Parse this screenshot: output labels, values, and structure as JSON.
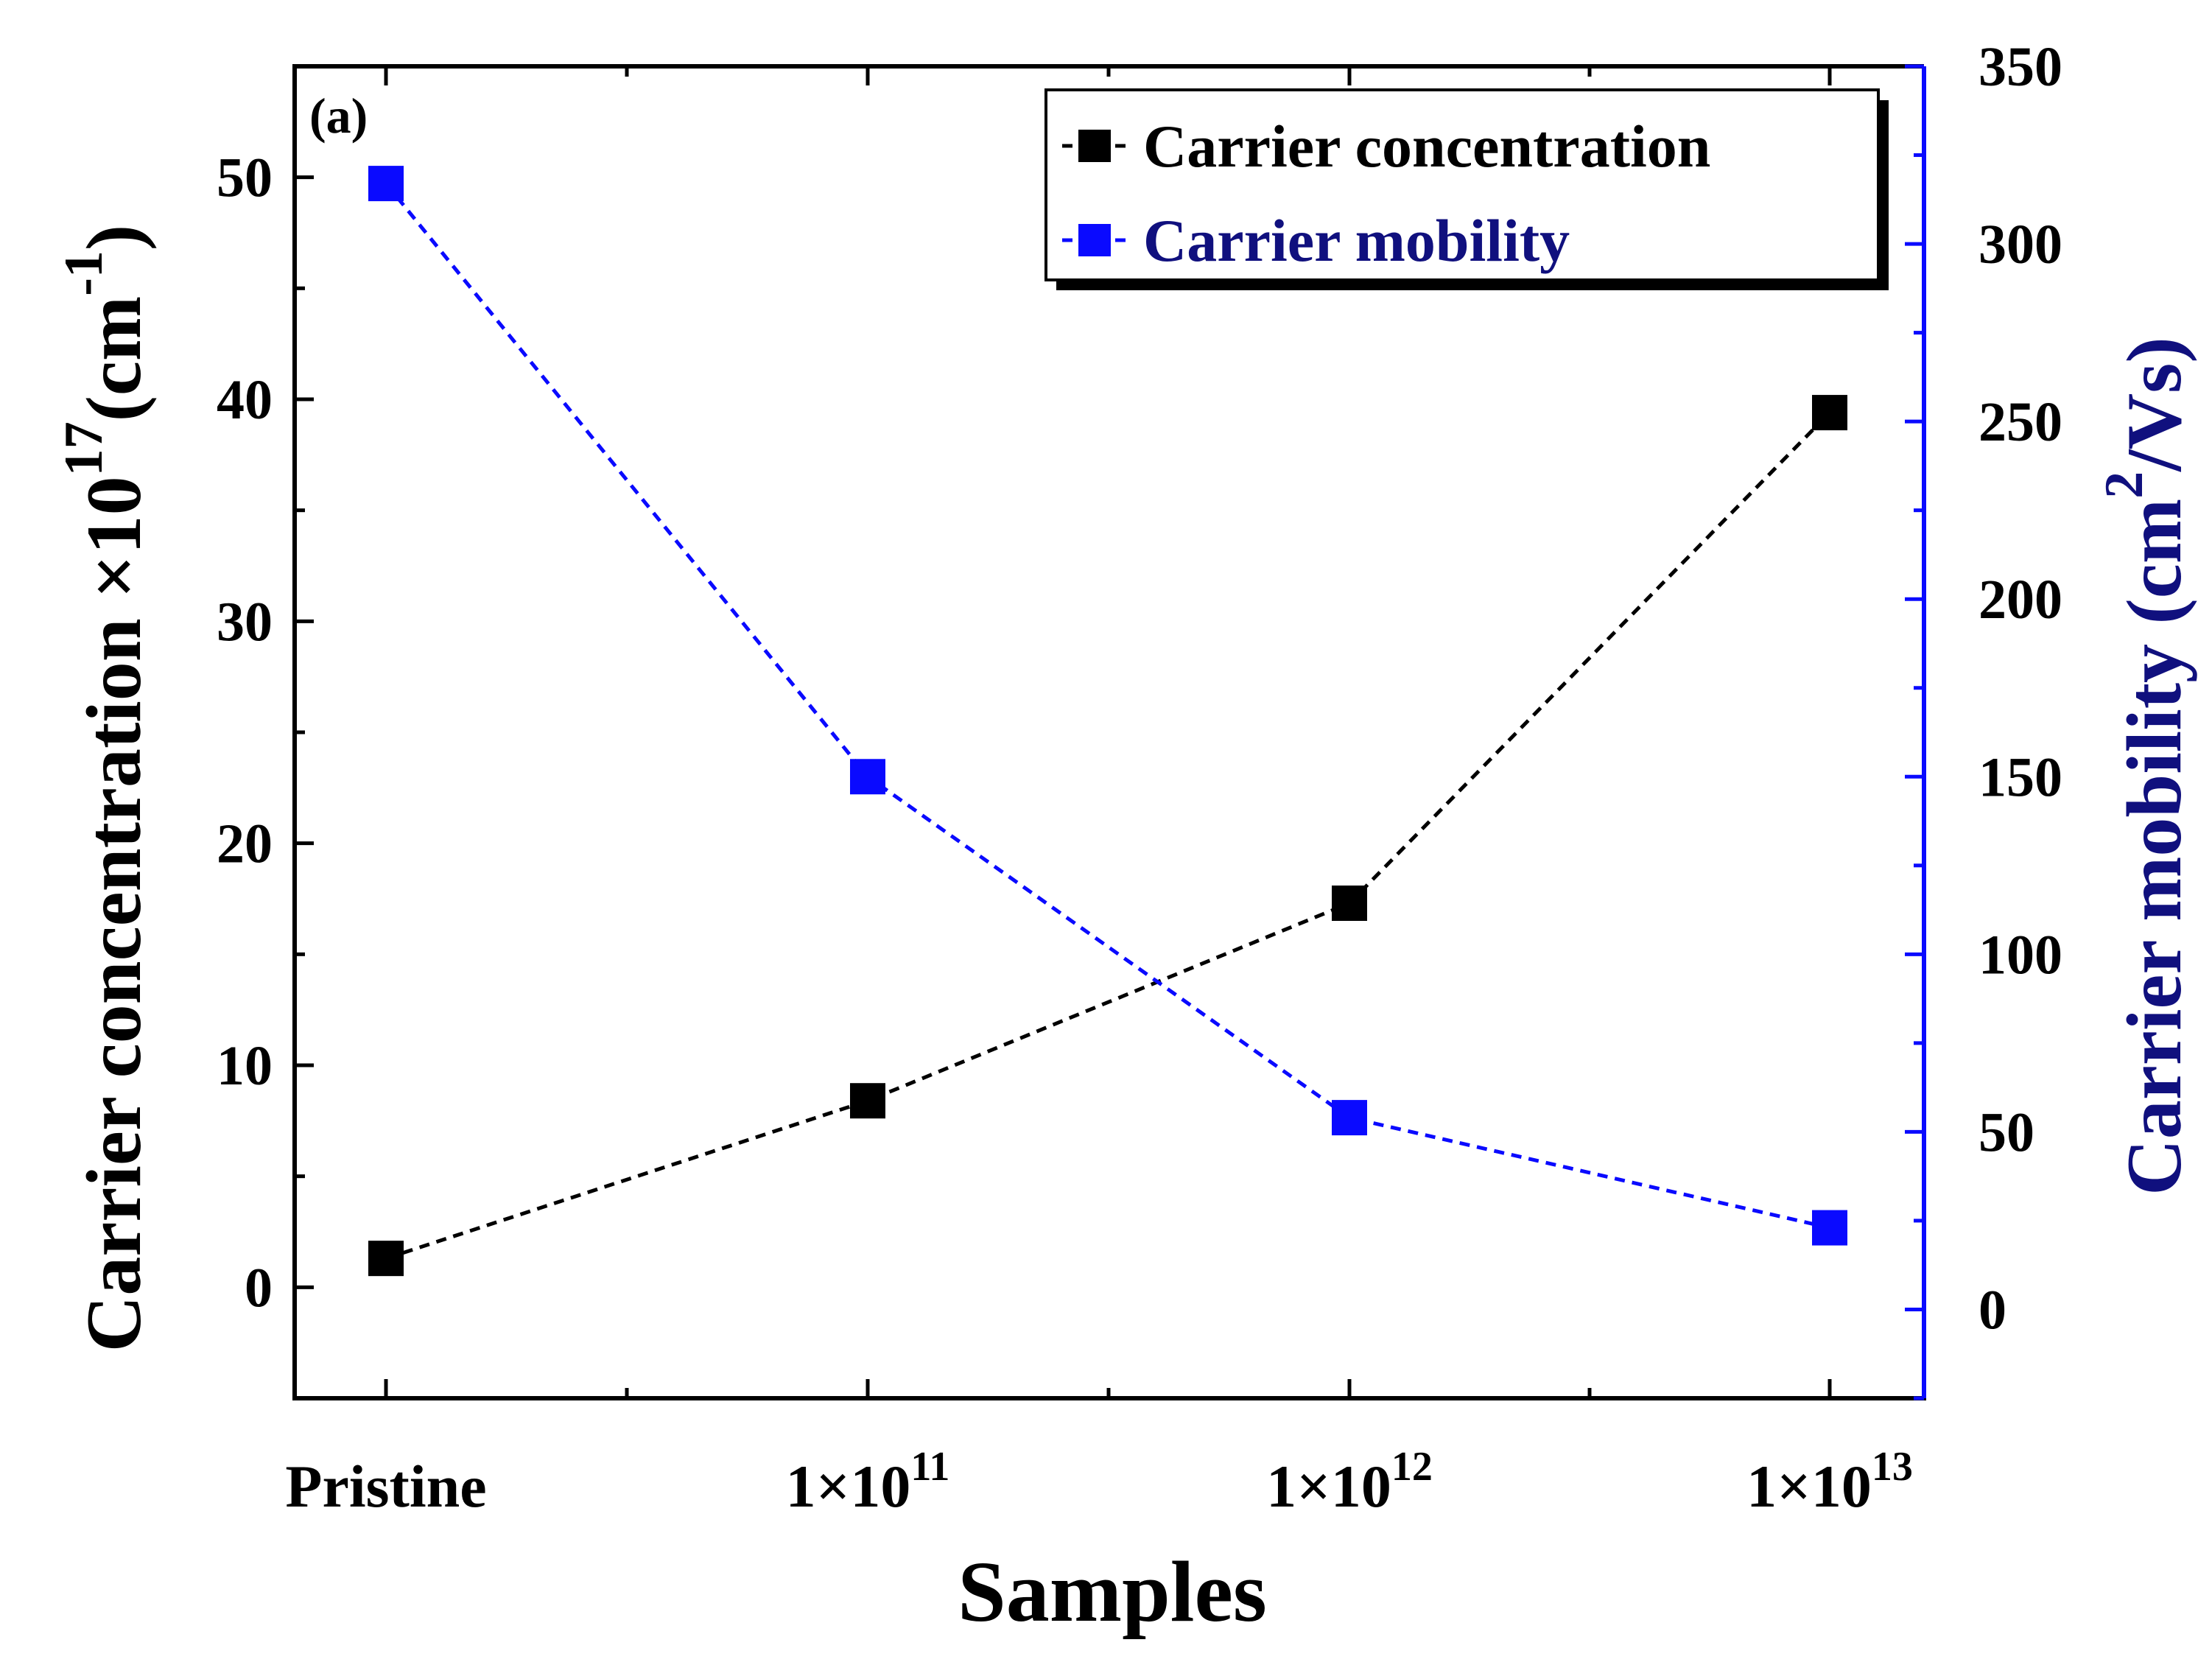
{
  "panel_label": "(a)",
  "colors": {
    "left_axis": "#000000",
    "right_axis": "#0a0aff",
    "right_label": "#10107e",
    "series_concentration": "#000000",
    "series_mobility": "#0a0aff"
  },
  "chart_data": {
    "type": "line",
    "title": "",
    "xlabel": "Samples",
    "categories": [
      "Pristine",
      "1×10^11",
      "1×10^12",
      "1×10^13"
    ],
    "category_labels": [
      {
        "base": "Pristine",
        "exp": ""
      },
      {
        "base": "1×10",
        "exp": "11"
      },
      {
        "base": "1×10",
        "exp": "12"
      },
      {
        "base": "1×10",
        "exp": "13"
      }
    ],
    "y_left": {
      "label_main": "Carrier concentration ×10",
      "label_sup": "17",
      "label_unit": "(cm",
      "label_unit_sup": "-1",
      "label_close": ")",
      "ylim": [
        -5,
        55
      ],
      "ticks": [
        0,
        10,
        20,
        30,
        40,
        50
      ]
    },
    "y_right": {
      "label_main": "Carrier mobility (cm",
      "label_sup": "2",
      "label_close": "/Vs)",
      "ylim": [
        -25,
        350
      ],
      "ticks": [
        0,
        50,
        100,
        150,
        200,
        250,
        300,
        350
      ]
    },
    "series": [
      {
        "name": "Carrier concentration",
        "axis": "left",
        "values": [
          1.3,
          8.4,
          17.3,
          39.4
        ]
      },
      {
        "name": "Carrier mobility",
        "axis": "right",
        "values": [
          317,
          150,
          54,
          23
        ]
      }
    ],
    "legend": {
      "position": "top-right"
    }
  }
}
